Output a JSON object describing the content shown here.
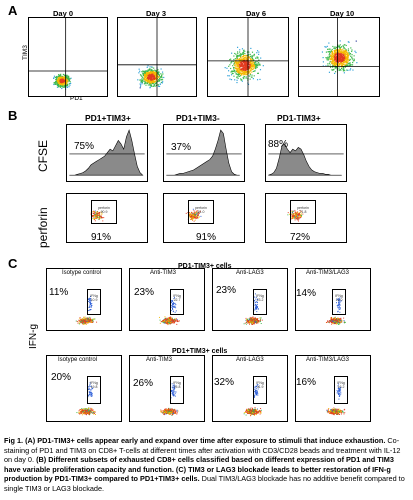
{
  "panelA": {
    "letter": "A",
    "plots": [
      {
        "title": "Day 0",
        "xlabel": "PD1",
        "ylabel": "TIM3"
      },
      {
        "title": "Day 3"
      },
      {
        "title": "Day 6"
      },
      {
        "title": "Day 10"
      }
    ]
  },
  "panelB": {
    "letter": "B",
    "columns": [
      "PD1+TIM3+",
      "PD1+TIM3-",
      "PD1-TIM3+"
    ],
    "row_cfse": {
      "label": "CFSE",
      "values": [
        "75%",
        "37%",
        "88%"
      ]
    },
    "row_perforin": {
      "label": "perforin",
      "values": [
        "91%",
        "91%",
        "72%"
      ],
      "gate_label": "perforin",
      "gate_values": [
        "90.9",
        "91.0",
        "71.8"
      ]
    }
  },
  "panelC": {
    "letter": "C",
    "ylabel": "IFN-g",
    "row1": {
      "header": "PD1-TIM3+ cells",
      "plots": [
        {
          "title": "Isotype control",
          "value": "11%",
          "gate_value": "10.9"
        },
        {
          "title": "Anti-TIM3",
          "value": "23%",
          "gate_value": "22.7"
        },
        {
          "title": "Anti-LAG3",
          "value": "23%",
          "gate_value": "23.2"
        },
        {
          "title": "Anti-TIM3/LAG3",
          "value": "14%",
          "gate_value": "14.0"
        }
      ]
    },
    "row2": {
      "header": "PD1+TIM3+ cells",
      "plots": [
        {
          "title": "Isotype control",
          "value": "20%",
          "gate_value": "19.8"
        },
        {
          "title": "Anti-TIM3",
          "value": "26%",
          "gate_value": "25.8"
        },
        {
          "title": "Anti-LAG3",
          "value": "32%",
          "gate_value": "31.9"
        },
        {
          "title": "Anti-TIM3/LAG3",
          "value": "16%",
          "gate_value": "16.2"
        }
      ]
    },
    "gate_label": "IFNg"
  },
  "caption": {
    "part1_bold": "Fig 1. (A) PD1-TIM3+ cells appear early and expand over time after exposure to stimuli that induce exhaustion.",
    "part2": " Co-staining of PD1 and TIM3 on CD8+ T-cells at different times after activation with CD3/CD28 beads and treatment with IL-12 on day 0. ",
    "part3_bold": "(B) Different subsets of exhausted CD8+ cells classified based on different expression of PD1 and TIM3 have variable proliferation capacity and function. (C) TIM3 or LAG3 blockade leads to better restoration of IFN-g production by PD1-TIM3+ compared to PD1+TIM3+ cells.",
    "part4": " Dual TIM3/LAG3 blockade has no additive benefit compared to single TIM3 or LAG3 blockade."
  }
}
